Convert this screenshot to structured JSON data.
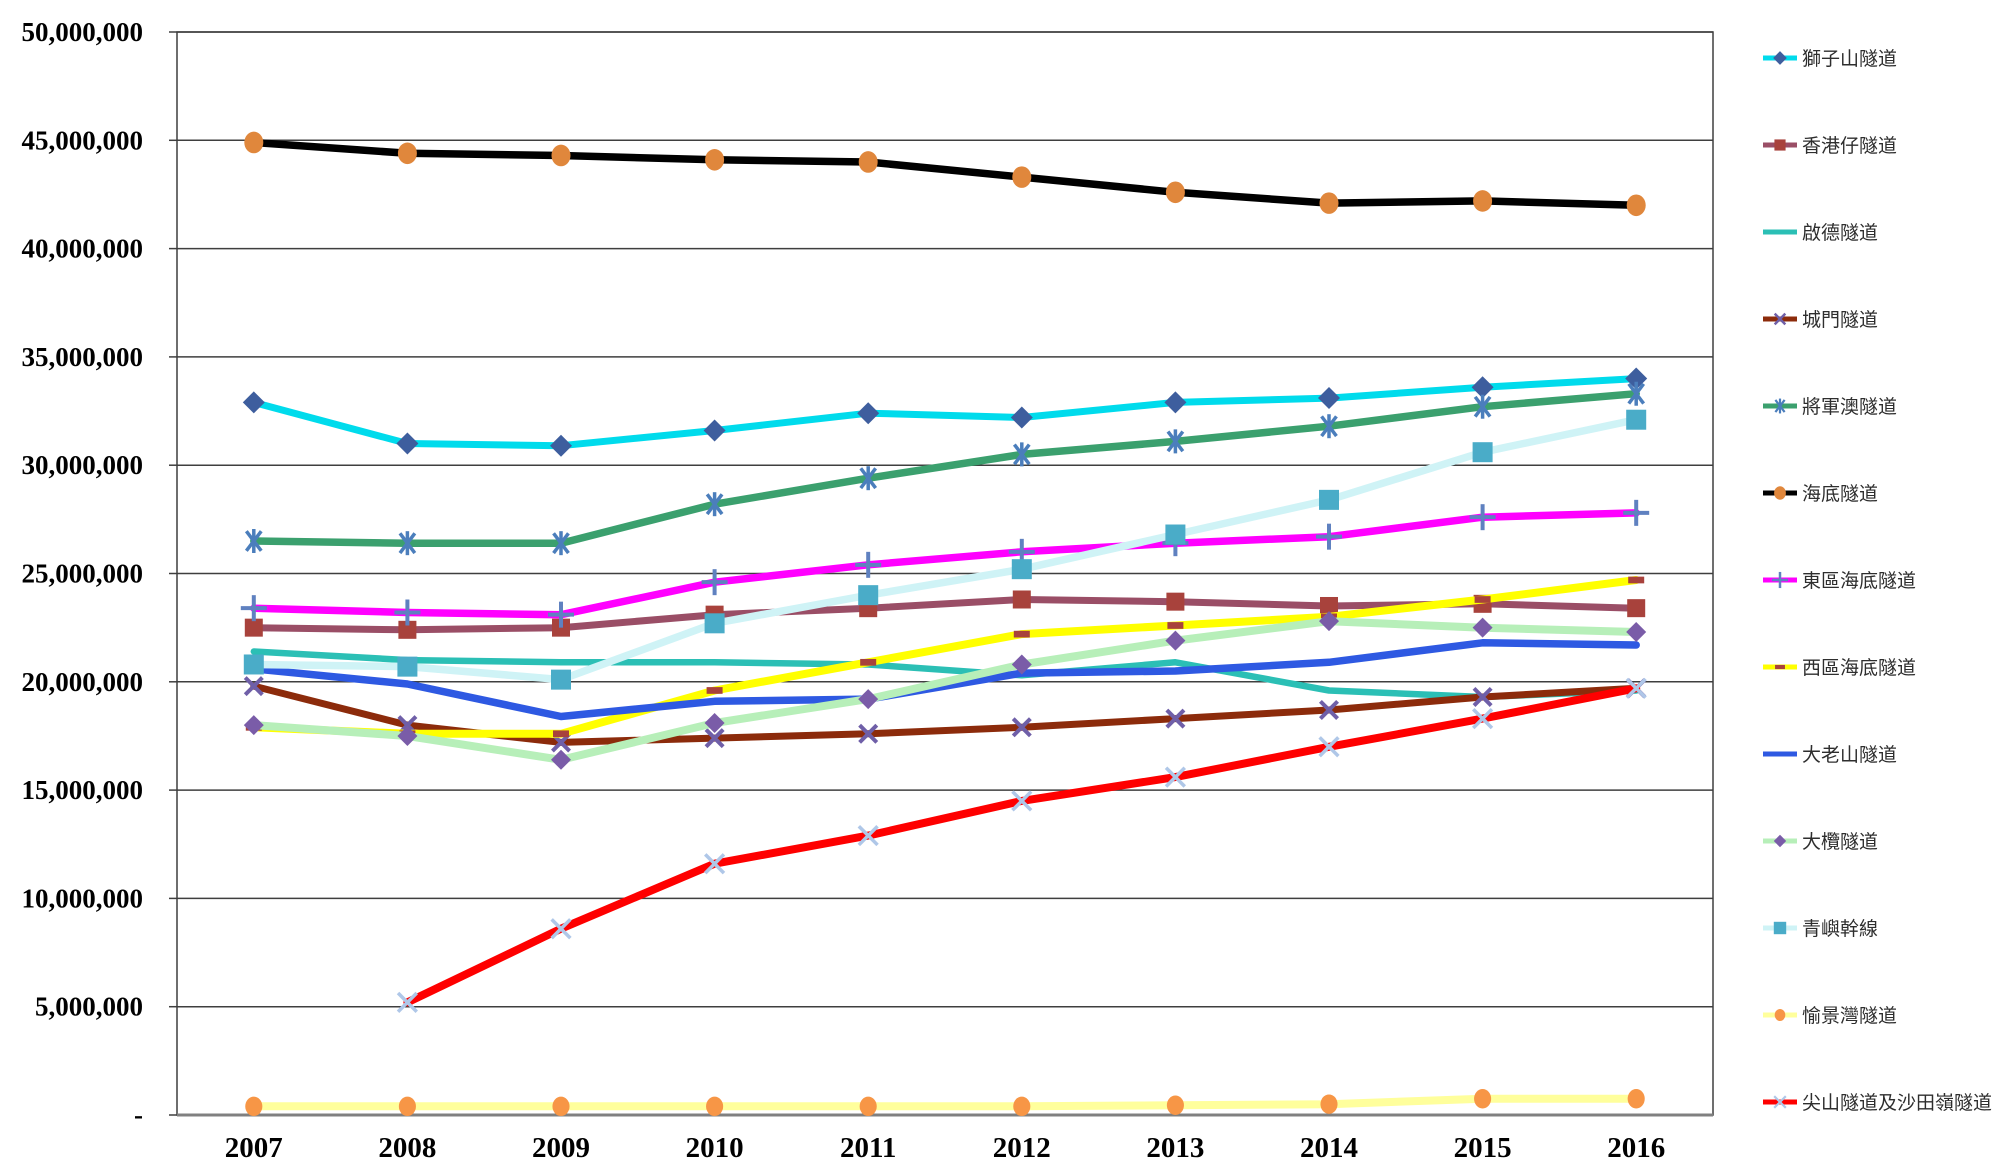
{
  "chart_data": {
    "type": "line",
    "title": "",
    "xlabel": "",
    "ylabel": "",
    "legend_position": "right",
    "grid": true,
    "background": "#FFFFFF",
    "grid_color": "#3F3F3F",
    "axis_line_color": "#808080",
    "tick_label_color": "#000000",
    "legend_text_color": "#2E2E2E",
    "x_categories": [
      "2007",
      "2008",
      "2009",
      "2010",
      "2011",
      "2012",
      "2013",
      "2014",
      "2015",
      "2016"
    ],
    "y_axis": {
      "min": 0,
      "max": 50000000,
      "step": 5000000,
      "tick_labels_bottom_to_top": [
        "-",
        "5,000,000",
        "10,000,000",
        "15,000,000",
        "20,000,000",
        "25,000,000",
        "30,000,000",
        "35,000,000",
        "40,000,000",
        "45,000,000",
        "50,000,000"
      ]
    },
    "series": [
      {
        "id": "lion-rock-tunnel",
        "label": "獅子山隧道",
        "line_color": "#00DBEC",
        "line_width": 7,
        "marker": {
          "shape": "diamond",
          "color": "#3E5E9E",
          "size": 11,
          "stroke": 0
        },
        "values": [
          32900000,
          31000000,
          30900000,
          31600000,
          32400000,
          32200000,
          32900000,
          33100000,
          33600000,
          34000000
        ]
      },
      {
        "id": "aberdeen-tunnel",
        "label": "香港仔隧道",
        "line_color": "#9A4E66",
        "line_width": 7,
        "marker": {
          "shape": "square",
          "color": "#A8423C",
          "size": 9,
          "stroke": 0
        },
        "values": [
          22500000,
          22400000,
          22500000,
          23100000,
          23400000,
          23800000,
          23700000,
          23500000,
          23600000,
          23400000
        ]
      },
      {
        "id": "kai-tak-tunnel",
        "label": "啟德隧道",
        "line_color": "#2BBFB5",
        "line_width": 6.5,
        "marker": {
          "shape": "none",
          "color": "#2BBFB5",
          "size": 0,
          "stroke": 0
        },
        "values": [
          21400000,
          21000000,
          20900000,
          20900000,
          20800000,
          20300000,
          20900000,
          19600000,
          19300000,
          19600000
        ]
      },
      {
        "id": "shing-mun-tunnels",
        "label": "城門隧道",
        "line_color": "#8C2B0B",
        "line_width": 7,
        "marker": {
          "shape": "x",
          "color": "#6F5FA8",
          "size": 11,
          "stroke": 4
        },
        "values": [
          19800000,
          18000000,
          17200000,
          17400000,
          17600000,
          17900000,
          18300000,
          18700000,
          19300000,
          19700000
        ]
      },
      {
        "id": "tseung-kwan-o-tunnel",
        "label": "將軍澳隧道",
        "line_color": "#3BA06E",
        "line_width": 7.5,
        "marker": {
          "shape": "asterisk",
          "color": "#4B7EBC",
          "size": 12,
          "stroke": 3.5
        },
        "values": [
          26500000,
          26400000,
          26400000,
          28200000,
          29400000,
          30500000,
          31100000,
          31800000,
          32700000,
          33300000
        ]
      },
      {
        "id": "cross-harbour-tunnel",
        "label": "海底隧道",
        "line_color": "#000000",
        "line_width": 7.5,
        "marker": {
          "shape": "circle",
          "color": "#E0873C",
          "size": 10,
          "stroke": 0
        },
        "values": [
          44900000,
          44400000,
          44300000,
          44100000,
          44000000,
          43300000,
          42600000,
          42100000,
          42200000,
          42000000
        ]
      },
      {
        "id": "eastern-harbour-crossing",
        "label": "東區海底隧道",
        "line_color": "#FF00FF",
        "line_width": 7.5,
        "marker": {
          "shape": "plus",
          "color": "#5F81C0",
          "size": 13,
          "stroke": 4
        },
        "values": [
          23400000,
          23200000,
          23100000,
          24600000,
          25400000,
          26000000,
          26400000,
          26700000,
          27600000,
          27800000
        ]
      },
      {
        "id": "western-harbour-crossing",
        "label": "西區海底隧道",
        "line_color": "#FFFF00",
        "line_width": 8,
        "marker": {
          "shape": "dash",
          "color": "#A8423C",
          "size": 8,
          "stroke": 0
        },
        "values": [
          17900000,
          17600000,
          17600000,
          19600000,
          20900000,
          22200000,
          22600000,
          23000000,
          23800000,
          24700000
        ]
      },
      {
        "id": "tates-cairn-tunnel",
        "label": "大老山隧道",
        "line_color": "#2E59E2",
        "line_width": 7.5,
        "marker": {
          "shape": "none",
          "color": "#2E59E2",
          "size": 0,
          "stroke": 0
        },
        "values": [
          20600000,
          19900000,
          18400000,
          19100000,
          19200000,
          20400000,
          20500000,
          20900000,
          21800000,
          21700000
        ]
      },
      {
        "id": "tai-lam-tunnel",
        "label": "大欖隧道",
        "line_color": "#B7EFB9",
        "line_width": 8,
        "marker": {
          "shape": "diamond",
          "color": "#7A5CA8",
          "size": 10,
          "stroke": 0
        },
        "values": [
          18000000,
          17500000,
          16400000,
          18100000,
          19200000,
          20800000,
          21900000,
          22800000,
          22500000,
          22300000
        ]
      },
      {
        "id": "lantau-link",
        "label": "青嶼幹線",
        "line_color": "#CFF3F6",
        "line_width": 7.5,
        "marker": {
          "shape": "square",
          "color": "#4AACC8",
          "size": 10,
          "stroke": 0
        },
        "values": [
          20800000,
          20700000,
          20100000,
          22700000,
          24000000,
          25200000,
          26800000,
          28400000,
          30600000,
          32100000
        ]
      },
      {
        "id": "discovery-bay-tunnel",
        "label": "愉景灣隧道",
        "line_color": "#FFFF9C",
        "line_width": 8,
        "marker": {
          "shape": "circle",
          "color": "#F79646",
          "size": 9,
          "stroke": 0
        },
        "values": [
          400000,
          400000,
          400000,
          400000,
          400000,
          400000,
          450000,
          500000,
          750000,
          750000
        ]
      },
      {
        "id": "eagles-nest-and-sha-tin-heights-tunnels",
        "label": "尖山隧道及沙田嶺隧道",
        "line_color": "#FE0000",
        "line_width": 8,
        "marker": {
          "shape": "x",
          "color": "#AFC7E8",
          "size": 12,
          "stroke": 3.5
        },
        "values": [
          null,
          5200000,
          8600000,
          11600000,
          12900000,
          14500000,
          15600000,
          17000000,
          18300000,
          19700000
        ]
      }
    ]
  }
}
